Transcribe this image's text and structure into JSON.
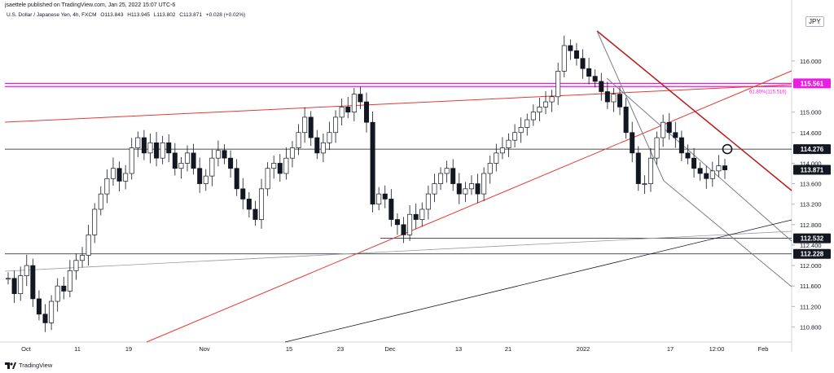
{
  "header": {
    "publish": "jsaettele published on TradingView.com, Jan 25, 2022 15:07 UTC-6",
    "symbol": "U.S. Dollar / Japanese Yen, 4h, FXCM",
    "open": "O113.843",
    "high": "H113.945",
    "low": "L113.802",
    "close": "C113.871",
    "change": "+0.028 (+0.02%)"
  },
  "currency": "JPY",
  "footer": {
    "brand": "TradingView"
  },
  "colors": {
    "up": "#131722",
    "down": "#131722",
    "magenta": "#e81ee0",
    "red": "#e53935",
    "darkred": "#b71c1c",
    "gray": "#787b86"
  },
  "chart_data": {
    "type": "line",
    "title": "",
    "xlabel": "",
    "ylabel": "",
    "ylim": [
      110.6,
      117.0
    ],
    "x_ticks": [
      "Oct",
      "11",
      "19",
      "Nov",
      "15",
      "23",
      "Dec",
      "13",
      "21",
      "2022",
      "17",
      "12:00",
      "Feb"
    ],
    "y_ticks": [
      "116.000",
      "115.600",
      "115.000",
      "114.600",
      "114.000",
      "113.600",
      "113.200",
      "112.800",
      "112.400",
      "112.000",
      "111.600",
      "111.200",
      "110.800"
    ],
    "series": [
      {
        "values": [
          111.75,
          111.45,
          111.8,
          112.0,
          111.35,
          111.05,
          110.88,
          111.3,
          111.6,
          111.5,
          111.9,
          112.1,
          112.2,
          112.6,
          113.1,
          113.4,
          113.7,
          113.9,
          113.65,
          113.8,
          114.3,
          114.5,
          114.2,
          114.4,
          114.1,
          114.4,
          114.2,
          113.9,
          114.0,
          114.2,
          113.9,
          113.6,
          113.75,
          114.1,
          114.25,
          114.1,
          113.9,
          113.5,
          113.3,
          113.1,
          112.9,
          113.5,
          113.9,
          114.0,
          113.8,
          114.1,
          114.3,
          114.6,
          114.9,
          114.5,
          114.2,
          114.4,
          114.6,
          114.9,
          115.1,
          115.0,
          115.35,
          115.2,
          114.8,
          113.2,
          113.4,
          113.3,
          112.9,
          112.8,
          112.6,
          113.0,
          112.9,
          113.1,
          113.4,
          113.6,
          113.8,
          113.9,
          113.6,
          113.4,
          113.5,
          113.6,
          113.4,
          113.8,
          114.0,
          114.2,
          114.3,
          114.45,
          114.6,
          114.7,
          114.85,
          115.0,
          115.1,
          115.2,
          115.3,
          115.8,
          116.3,
          116.2,
          116.05,
          115.85,
          115.7,
          115.6,
          115.4,
          115.2,
          115.35,
          115.1,
          114.6,
          114.2,
          113.6,
          113.6,
          114.1,
          114.5,
          114.8,
          114.6,
          114.5,
          114.2,
          114.1,
          113.9,
          113.8,
          113.7,
          113.85,
          113.95,
          113.87
        ]
      }
    ]
  },
  "price_tags": [
    {
      "label": "115.561",
      "value": 115.561,
      "bg": "#e81ee0",
      "fg": "#ffffff"
    },
    {
      "label": "114.276",
      "value": 114.276,
      "bg": "#131722",
      "fg": "#ffffff"
    },
    {
      "label": "113.871",
      "value": 113.871,
      "bg": "#131722",
      "fg": "#ffffff"
    },
    {
      "label": "112.532",
      "value": 112.532,
      "bg": "#131722",
      "fg": "#ffffff"
    },
    {
      "label": "112.228",
      "value": 112.228,
      "bg": "#131722",
      "fg": "#ffffff"
    }
  ],
  "annotations": {
    "fib": "61.80%(115.516)"
  }
}
